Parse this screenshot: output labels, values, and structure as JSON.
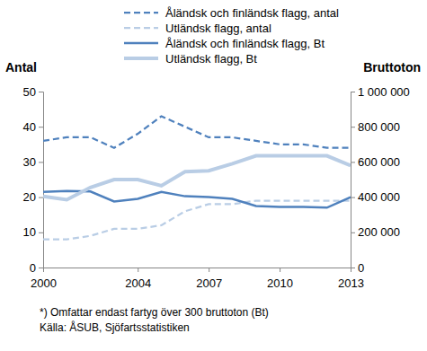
{
  "chart_data": {
    "type": "line",
    "x": [
      2000,
      2001,
      2002,
      2003,
      2004,
      2005,
      2006,
      2007,
      2008,
      2009,
      2010,
      2011,
      2012,
      2013
    ],
    "xlim": [
      2000,
      2013
    ],
    "xticks": [
      2000,
      2004,
      2007,
      2010,
      2013
    ],
    "y_label": "Antal",
    "ylim": [
      0,
      50
    ],
    "yticks": [
      0,
      10,
      20,
      30,
      40,
      50
    ],
    "y2_label": "Bruttoton",
    "y2lim": [
      0,
      1000000
    ],
    "y2ticks": [
      0,
      {
        "value": 200000,
        "label": "200 000"
      },
      {
        "value": 400000,
        "label": "400 000"
      },
      {
        "value": 600000,
        "label": "600 000"
      },
      {
        "value": 800000,
        "label": "800 000"
      },
      {
        "value": 1000000,
        "label": "1 000 000"
      }
    ],
    "grid": false,
    "legend": "top",
    "annotations": [
      "*) Omfattar endast fartyg över 300 bruttoton (Bt)",
      "Källa: ÅSUB, Sjöfartsstatistiken"
    ],
    "series": [
      {
        "name": "Åländsk och finländsk flagg, antal",
        "color": "#4f81bd",
        "line_style": "dashed",
        "values": [
          36,
          37,
          37,
          34,
          38,
          43,
          40,
          37,
          37,
          36,
          35,
          35,
          34,
          34
        ]
      },
      {
        "name": "Utländsk flagg, antal",
        "color": "#b9cde5",
        "line_style": "dashed",
        "values": [
          8,
          8,
          9,
          11,
          11,
          12,
          16,
          18,
          18,
          19,
          19,
          19,
          19,
          19
        ]
      },
      {
        "name": "Åländsk och finländsk flagg, Bt",
        "color": "#4f81bd",
        "line_style": "solid",
        "axis": "y2",
        "values": [
          430000,
          435000,
          432000,
          375000,
          390000,
          430000,
          405000,
          400000,
          390000,
          350000,
          345000,
          345000,
          340000,
          400000
        ]
      },
      {
        "name": "Utländsk flagg, Bt",
        "color": "#b9cde5",
        "line_style": "solid",
        "axis": "y2",
        "values": [
          405000,
          385000,
          455000,
          500000,
          500000,
          465000,
          545000,
          550000,
          590000,
          635000,
          635000,
          635000,
          635000,
          580000
        ]
      }
    ]
  }
}
